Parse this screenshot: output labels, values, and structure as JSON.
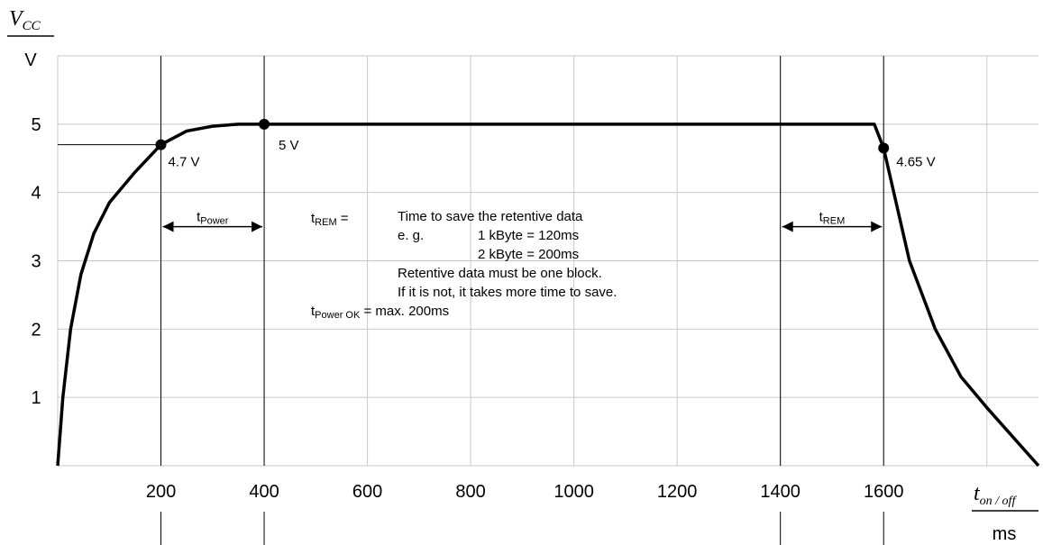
{
  "chart_data": {
    "type": "line",
    "y_label": {
      "main": "V",
      "sub": "CC",
      "unit": "V"
    },
    "x_label": {
      "main": "t",
      "sub": "on / off",
      "unit": "ms"
    },
    "xlim": [
      0,
      1900
    ],
    "ylim": [
      0,
      6
    ],
    "xticks": [
      200,
      400,
      600,
      800,
      1000,
      1200,
      1400,
      1600
    ],
    "xgrid": [
      200,
      400,
      600,
      800,
      1000,
      1200,
      1400,
      1600,
      1800
    ],
    "yticks": [
      1,
      2,
      3,
      4,
      5
    ],
    "ygrid": [
      1,
      2,
      3,
      4,
      5,
      6
    ],
    "grid": true,
    "color": "#000000",
    "x": [
      0,
      10,
      25,
      45,
      70,
      100,
      150,
      200,
      250,
      300,
      350,
      400,
      1582,
      1600,
      1650,
      1700,
      1750,
      1800,
      1900
    ],
    "values": [
      0,
      1,
      2,
      2.8,
      3.4,
      3.85,
      4.3,
      4.7,
      4.9,
      4.97,
      5,
      5,
      5,
      4.65,
      3.0,
      2.0,
      1.3,
      0.85,
      0
    ],
    "points": [
      {
        "x": 200,
        "y": 4.7,
        "label": "4.7 V"
      },
      {
        "x": 400,
        "y": 5,
        "label": "5 V"
      },
      {
        "x": 1600,
        "y": 4.65,
        "label": "4.65 V"
      }
    ],
    "vlines": [
      200,
      400,
      1400,
      1600
    ],
    "spans": [
      {
        "from": 200,
        "to": 400,
        "y": 3.5,
        "main": "t",
        "sub": "Power"
      },
      {
        "from": 1400,
        "to": 1600,
        "y": 3.5,
        "main": "t",
        "sub": "REM"
      }
    ],
    "notes": [
      {
        "main": "t",
        "sub": "REM",
        "rest": " ="
      },
      {
        "text": "Time to save the retentive data"
      },
      {
        "text": "e. g."
      },
      {
        "text": "1 kByte = 120ms"
      },
      {
        "text": "2 kByte = 200ms"
      },
      {
        "text": "Retentive data must be one block."
      },
      {
        "text": "If it is not, it takes more time to save."
      },
      {
        "main": "t",
        "sub": "Power OK",
        "rest": " = max. 200ms"
      }
    ]
  }
}
